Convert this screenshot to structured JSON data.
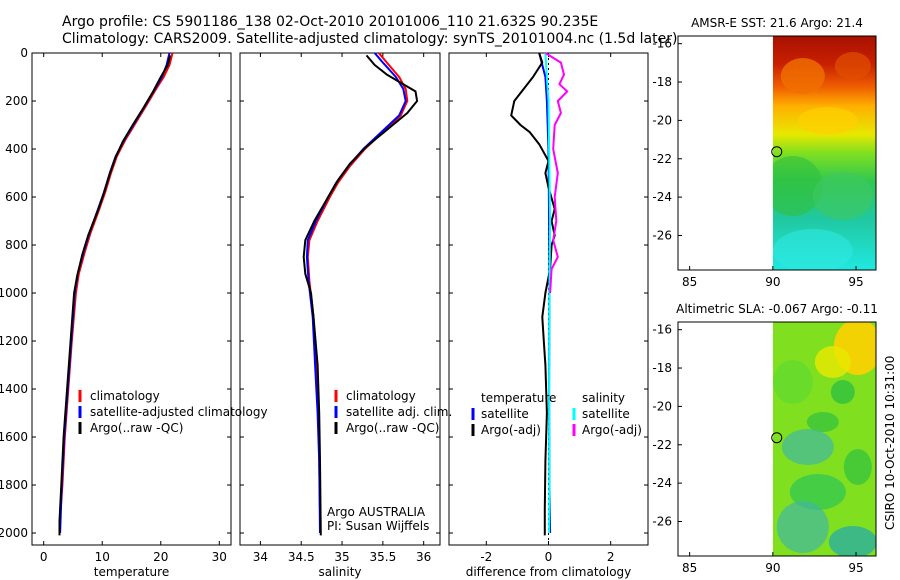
{
  "title_line1": "Argo profile: CS 5901186_138 02-Oct-2010 20101006_110 21.632S 90.235E",
  "title_line2": "Climatology: CARS2009. Satellite-adjusted climatology: synTS_20101004.nc (1.5d later)",
  "side_label": "CSIRO 10-Oct-2010 10:31:00",
  "colors": {
    "clim": "#ff0000",
    "sat": "#0000ff",
    "argo": "#000000",
    "sal_sat": "#00ffff",
    "sal_argo": "#ff00ff"
  },
  "chart_data": [
    {
      "type": "line",
      "title": "",
      "xlabel": "temperature",
      "ylabel": "",
      "xlim": [
        -2,
        32
      ],
      "ylim": [
        2050,
        0
      ],
      "xticks": [
        0,
        10,
        20,
        30
      ],
      "yticks": [
        0,
        200,
        400,
        600,
        800,
        1000,
        1200,
        1400,
        1600,
        1800,
        2000
      ],
      "legend": [
        "climatology",
        "satellite-adjusted climatology",
        "Argo(..raw -QC)"
      ],
      "series": [
        {
          "name": "climatology",
          "color": "clim",
          "points": [
            [
              22,
              0
            ],
            [
              21.5,
              50
            ],
            [
              20.5,
              100
            ],
            [
              19.2,
              150
            ],
            [
              17.5,
              220
            ],
            [
              15.5,
              300
            ],
            [
              14,
              360
            ],
            [
              12.5,
              430
            ],
            [
              11.5,
              500
            ],
            [
              10.5,
              580
            ],
            [
              9.5,
              650
            ],
            [
              8,
              750
            ],
            [
              7,
              830
            ],
            [
              6,
              920
            ],
            [
              5.5,
              1000
            ],
            [
              4.8,
              1200
            ],
            [
              4.2,
              1400
            ],
            [
              3.6,
              1600
            ],
            [
              3.2,
              1800
            ],
            [
              2.9,
              1900
            ]
          ]
        },
        {
          "name": "satellite-adjusted climatology",
          "color": "sat",
          "points": [
            [
              21.5,
              0
            ],
            [
              21,
              50
            ],
            [
              20.2,
              100
            ],
            [
              19,
              150
            ],
            [
              17.3,
              220
            ],
            [
              15.3,
              300
            ],
            [
              13.8,
              360
            ],
            [
              12.3,
              430
            ],
            [
              11.3,
              500
            ],
            [
              10.3,
              580
            ],
            [
              9.3,
              650
            ],
            [
              7.8,
              750
            ],
            [
              6.8,
              830
            ],
            [
              5.8,
              920
            ],
            [
              5.3,
              1000
            ],
            [
              4.7,
              1200
            ],
            [
              4.1,
              1400
            ],
            [
              3.5,
              1600
            ],
            [
              3.1,
              1800
            ],
            [
              2.8,
              2000
            ]
          ]
        },
        {
          "name": "Argo(..raw -QC)",
          "color": "argo",
          "points": [
            [
              21.6,
              10
            ],
            [
              21.2,
              50
            ],
            [
              20,
              100
            ],
            [
              18.7,
              160
            ],
            [
              17,
              230
            ],
            [
              15.2,
              300
            ],
            [
              13.5,
              370
            ],
            [
              12.2,
              440
            ],
            [
              11.2,
              510
            ],
            [
              10.2,
              590
            ],
            [
              9.2,
              660
            ],
            [
              7.6,
              760
            ],
            [
              6.6,
              840
            ],
            [
              5.7,
              930
            ],
            [
              5.2,
              1000
            ],
            [
              4.6,
              1200
            ],
            [
              4,
              1400
            ],
            [
              3.4,
              1600
            ],
            [
              3,
              1800
            ],
            [
              2.7,
              1950
            ],
            [
              2.7,
              2010
            ]
          ]
        }
      ]
    },
    {
      "type": "line",
      "title": "",
      "xlabel": "salinity",
      "ylabel": "",
      "xlim": [
        33.75,
        36.2
      ],
      "ylim": [
        2050,
        0
      ],
      "xticks": [
        34,
        34.5,
        35,
        35.5,
        36
      ],
      "legend": [
        "climatology",
        "satellite adj. clim.",
        "Argo(..raw -QC)"
      ],
      "annotation": [
        "Argo AUSTRALIA",
        "PI: Susan Wijffels"
      ],
      "series": [
        {
          "name": "climatology",
          "color": "clim",
          "points": [
            [
              35.45,
              0
            ],
            [
              35.55,
              40
            ],
            [
              35.7,
              100
            ],
            [
              35.78,
              150
            ],
            [
              35.8,
              200
            ],
            [
              35.72,
              260
            ],
            [
              35.5,
              330
            ],
            [
              35.28,
              400
            ],
            [
              35.1,
              470
            ],
            [
              34.95,
              540
            ],
            [
              34.85,
              600
            ],
            [
              34.7,
              700
            ],
            [
              34.6,
              780
            ],
            [
              34.58,
              850
            ],
            [
              34.6,
              950
            ],
            [
              34.65,
              1100
            ],
            [
              34.68,
              1300
            ],
            [
              34.71,
              1500
            ],
            [
              34.72,
              1700
            ],
            [
              34.73,
              1900
            ]
          ]
        },
        {
          "name": "satellite adj. clim.",
          "color": "sat",
          "points": [
            [
              35.4,
              0
            ],
            [
              35.5,
              40
            ],
            [
              35.66,
              100
            ],
            [
              35.75,
              150
            ],
            [
              35.78,
              200
            ],
            [
              35.7,
              260
            ],
            [
              35.48,
              330
            ],
            [
              35.26,
              400
            ],
            [
              35.08,
              470
            ],
            [
              34.93,
              540
            ],
            [
              34.83,
              600
            ],
            [
              34.68,
              700
            ],
            [
              34.58,
              780
            ],
            [
              34.57,
              850
            ],
            [
              34.59,
              950
            ],
            [
              34.64,
              1100
            ],
            [
              34.67,
              1300
            ],
            [
              34.7,
              1500
            ],
            [
              34.72,
              1700
            ],
            [
              34.73,
              2000
            ]
          ]
        },
        {
          "name": "Argo(..raw -QC)",
          "color": "argo",
          "points": [
            [
              35.3,
              10
            ],
            [
              35.4,
              50
            ],
            [
              35.55,
              90
            ],
            [
              35.75,
              130
            ],
            [
              35.9,
              160
            ],
            [
              35.92,
              200
            ],
            [
              35.8,
              250
            ],
            [
              35.55,
              320
            ],
            [
              35.3,
              390
            ],
            [
              35.1,
              460
            ],
            [
              34.95,
              530
            ],
            [
              34.83,
              600
            ],
            [
              34.66,
              700
            ],
            [
              34.55,
              780
            ],
            [
              34.53,
              850
            ],
            [
              34.55,
              920
            ],
            [
              34.62,
              1000
            ],
            [
              34.65,
              1100
            ],
            [
              34.7,
              1300
            ],
            [
              34.72,
              1500
            ],
            [
              34.73,
              1700
            ],
            [
              34.74,
              2010
            ]
          ]
        }
      ]
    },
    {
      "type": "line",
      "title": "",
      "xlabel": "difference from climatology",
      "ylabel": "",
      "xlim": [
        -3.2,
        3.2
      ],
      "ylim": [
        2050,
        0
      ],
      "xticks": [
        -2,
        0,
        2
      ],
      "legend": [
        "temperature",
        "satellite",
        "Argo(-adj)",
        "salinity",
        "satellite",
        "Argo(-adj)"
      ],
      "series": [
        {
          "name": "temperature satellite",
          "color": "sat",
          "points": [
            [
              -0.3,
              0
            ],
            [
              -0.2,
              50
            ],
            [
              -0.1,
              100
            ],
            [
              -0.05,
              200
            ],
            [
              0,
              400
            ],
            [
              0.02,
              700
            ],
            [
              0.03,
              1000
            ],
            [
              0.02,
              1400
            ],
            [
              0.03,
              1800
            ],
            [
              0.05,
              2000
            ]
          ]
        },
        {
          "name": "temperature Argo(-adj)",
          "color": "argo",
          "points": [
            [
              -0.3,
              0
            ],
            [
              -0.2,
              40
            ],
            [
              -0.5,
              100
            ],
            [
              -1.1,
              200
            ],
            [
              -1.2,
              260
            ],
            [
              -0.9,
              300
            ],
            [
              -0.6,
              330
            ],
            [
              -0.3,
              380
            ],
            [
              0,
              450
            ],
            [
              -0.1,
              500
            ],
            [
              0,
              560
            ],
            [
              0.2,
              650
            ],
            [
              0.1,
              700
            ],
            [
              0.2,
              760
            ],
            [
              0.1,
              800
            ],
            [
              0.05,
              900
            ],
            [
              -0.1,
              1000
            ],
            [
              -0.2,
              1100
            ],
            [
              -0.15,
              1200
            ],
            [
              -0.1,
              1300
            ],
            [
              -0.05,
              1500
            ],
            [
              -0.1,
              1700
            ],
            [
              -0.12,
              1900
            ],
            [
              -0.12,
              2010
            ]
          ]
        },
        {
          "name": "salinity satellite",
          "color": "sal_sat",
          "points": [
            [
              -0.1,
              0
            ],
            [
              -0.05,
              100
            ],
            [
              0,
              200
            ],
            [
              0.02,
              400
            ],
            [
              0.05,
              700
            ],
            [
              0.03,
              1000
            ],
            [
              0.02,
              1400
            ],
            [
              0.03,
              1800
            ],
            [
              0.02,
              2000
            ]
          ]
        },
        {
          "name": "salinity Argo(-adj)",
          "color": "sal_argo",
          "points": [
            [
              -0.1,
              0
            ],
            [
              0.4,
              40
            ],
            [
              0.5,
              90
            ],
            [
              0.35,
              130
            ],
            [
              0.6,
              160
            ],
            [
              0.3,
              200
            ],
            [
              0.4,
              250
            ],
            [
              0.2,
              300
            ],
            [
              0.15,
              400
            ],
            [
              0.3,
              500
            ],
            [
              0.2,
              600
            ],
            [
              0.25,
              700
            ],
            [
              0.15,
              780
            ],
            [
              0.3,
              850
            ],
            [
              0.1,
              900
            ],
            [
              0.05,
              1000
            ]
          ]
        }
      ]
    },
    {
      "type": "heatmap",
      "title": "AMSR-E SST: 21.6 Argo: 21.4",
      "xlim": [
        84.3,
        96.2
      ],
      "ylim": [
        -27.8,
        -15.6
      ],
      "xticks": [
        85,
        90,
        95
      ],
      "yticks": [
        -16,
        -18,
        -20,
        -22,
        -24,
        -26
      ],
      "argo_position": [
        90.235,
        -21.632
      ],
      "data_lon_start": 90
    },
    {
      "type": "heatmap",
      "title": "Altimetric SLA: -0.067 Argo: -0.11",
      "xlim": [
        84.3,
        96.2
      ],
      "ylim": [
        -27.8,
        -15.6
      ],
      "xticks": [
        85,
        90,
        95
      ],
      "yticks": [
        -16,
        -18,
        -20,
        -22,
        -24,
        -26
      ],
      "argo_position": [
        90.235,
        -21.632
      ],
      "data_lon_start": 90
    }
  ]
}
